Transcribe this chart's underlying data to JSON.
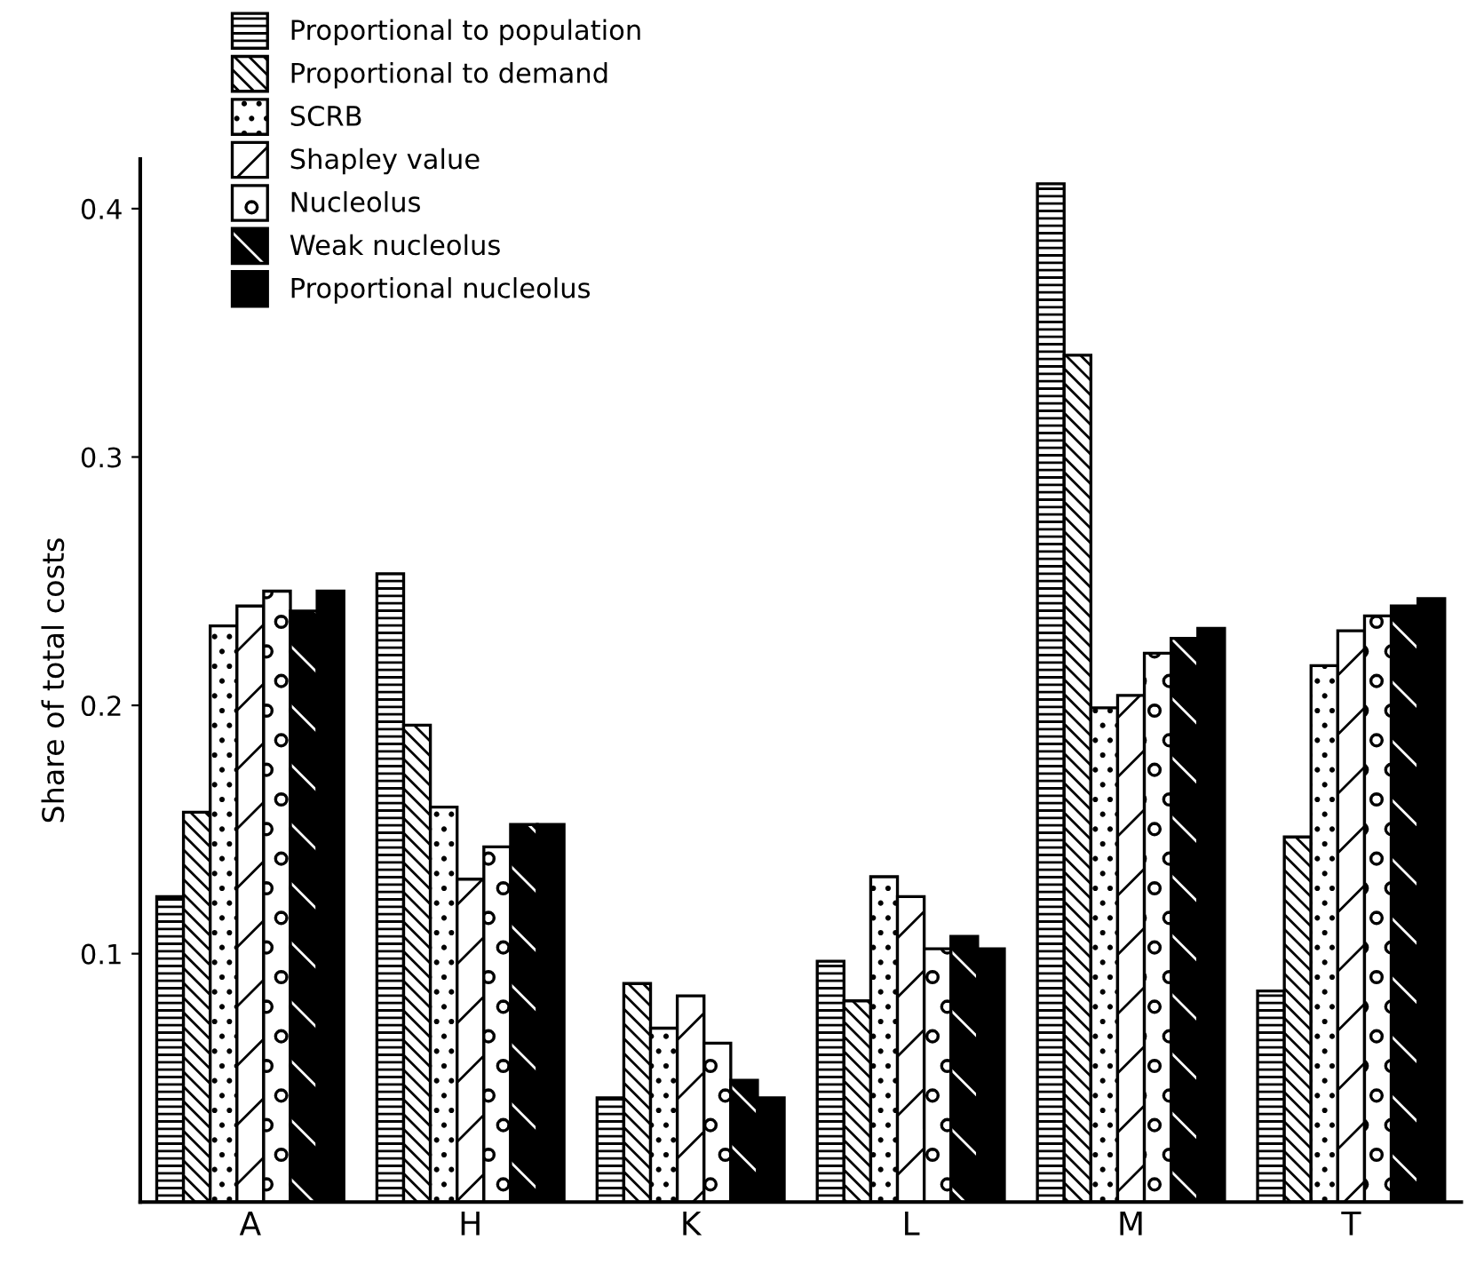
{
  "chart_data": {
    "type": "bar",
    "ylabel": "Share of total costs",
    "categories": [
      "A",
      "H",
      "K",
      "L",
      "M",
      "T"
    ],
    "series": [
      {
        "name": "Proportional to population",
        "color": "#000000",
        "values": [
          0.123,
          0.253,
          0.042,
          0.097,
          0.41,
          0.085
        ]
      },
      {
        "name": "Proportional to demand",
        "color": "#000000",
        "values": [
          0.157,
          0.192,
          0.088,
          0.081,
          0.341,
          0.147
        ]
      },
      {
        "name": "SCRB",
        "color": "#000000",
        "values": [
          0.232,
          0.159,
          0.07,
          0.131,
          0.199,
          0.216
        ]
      },
      {
        "name": "Shapley value",
        "color": "#000000",
        "values": [
          0.24,
          0.13,
          0.083,
          0.123,
          0.204,
          0.23
        ]
      },
      {
        "name": "Nucleolus",
        "color": "#000000",
        "values": [
          0.246,
          0.143,
          0.064,
          0.102,
          0.221,
          0.236
        ]
      },
      {
        "name": "Weak nucleolus",
        "color": "#000000",
        "values": [
          0.238,
          0.152,
          0.049,
          0.107,
          0.227,
          0.24
        ]
      },
      {
        "name": "Proportional nucleolus",
        "color": "#000000",
        "values": [
          0.246,
          0.152,
          0.042,
          0.102,
          0.231,
          0.243
        ]
      }
    ],
    "ylim": [
      0,
      0.42
    ],
    "yticks": [
      0.1,
      0.2,
      0.3,
      0.4
    ],
    "grid": false,
    "legend": "top left"
  }
}
